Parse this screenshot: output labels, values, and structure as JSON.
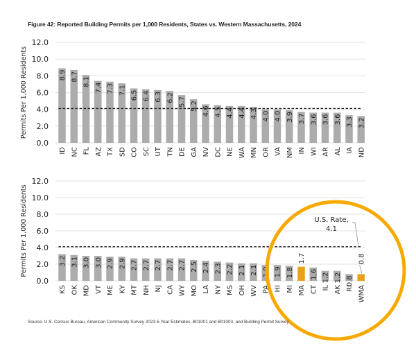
{
  "title": "Figure 42: Reported Building Permits per 1,000 Residents, States vs. Western Massachusetts, 2024",
  "source": "Source: U.S. Census Bureau, American Community Survey 2023 5-Year Estimates, B01001 and B01003, and Building Permit Survey",
  "colors": {
    "bar_default": "#acacad",
    "bar_highlight": "#e8a21a",
    "circle": "#f7a900",
    "grid": "#e6e6e6",
    "reference_line": "#222222"
  },
  "chart_data": [
    {
      "type": "bar",
      "title": "",
      "xlabel": "",
      "ylabel": "Permits Per 1,000 Residents",
      "ylim": [
        0,
        12
      ],
      "yticks": [
        "0.0",
        "2.0",
        "4.0",
        "6.0",
        "8.0",
        "10.0",
        "12.0"
      ],
      "grid": true,
      "categories": [
        "ID",
        "NC",
        "FL",
        "AZ",
        "TX",
        "SD",
        "CO",
        "SC",
        "UT",
        "TN",
        "DE",
        "GA",
        "NV",
        "DC",
        "NE",
        "WA",
        "MN",
        "OR",
        "VA",
        "NM",
        "IN",
        "WI",
        "AR",
        "AL",
        "IA",
        "ND"
      ],
      "values": [
        8.9,
        8.7,
        8.1,
        7.4,
        7.3,
        7.1,
        6.5,
        6.4,
        6.3,
        6.2,
        5.7,
        5.2,
        4.6,
        4.5,
        4.4,
        4.4,
        4.3,
        4.0,
        4.0,
        3.9,
        3.7,
        3.6,
        3.6,
        3.6,
        3.3,
        3.2
      ],
      "labels": [
        "8.9",
        "8.7",
        "8.1",
        "7.4",
        "7.3",
        "7.1",
        "6.5",
        "6.4",
        "6.3",
        "6.2",
        "5.7",
        "5.2",
        "4.6",
        "4.5",
        "4.4",
        "4.4",
        "4.3",
        "4.0",
        "4.0",
        "3.9",
        "3.7",
        "3.6",
        "3.6",
        "3.6",
        "3.3",
        "3.2"
      ],
      "highlight": [],
      "reference_line": {
        "value": 4.1,
        "style": "dashed",
        "label": ""
      }
    },
    {
      "type": "bar",
      "title": "",
      "xlabel": "",
      "ylabel": "Permits Per 1,000 Residents",
      "ylim": [
        0,
        12
      ],
      "yticks": [
        "0.0",
        "2.0",
        "4.0",
        "6.0",
        "8.0",
        "10.0",
        "12.0"
      ],
      "grid": true,
      "categories": [
        "KS",
        "OK",
        "MD",
        "VT",
        "ME",
        "KY",
        "MT",
        "NH",
        "NJ",
        "CA",
        "WY",
        "MO",
        "LA",
        "NY",
        "MS",
        "OH",
        "WV",
        "PA",
        "HI",
        "MI",
        "MA",
        "CT",
        "IL",
        "AK",
        "RI",
        "WMA"
      ],
      "values": [
        3.2,
        3.1,
        3.0,
        3.0,
        2.9,
        2.9,
        2.7,
        2.7,
        2.7,
        2.7,
        2.7,
        2.5,
        2.4,
        2.3,
        2.2,
        2.1,
        2.1,
        1.9,
        1.9,
        1.8,
        1.7,
        1.6,
        1.2,
        1.2,
        0.8,
        0.8
      ],
      "labels": [
        "3.2",
        "3.1",
        "3.0",
        "3.0",
        "2.9",
        "2.9",
        "2.7",
        "2.7",
        "2.7",
        "2.7",
        "2.7",
        "2.5",
        "2.4",
        "2.3",
        "2.2",
        "2.1",
        "2.1",
        "1.9",
        "1.9",
        "1.8",
        "1.7",
        "1.6",
        "1.2",
        "1.2",
        "0.8",
        "0.8"
      ],
      "highlight": [
        "MA",
        "WMA"
      ],
      "reference_line": {
        "value": 4.1,
        "style": "dashed",
        "label": "U.S. Rate,",
        "label_value": "4.1"
      },
      "annotation": "circle around MA through WMA"
    }
  ]
}
